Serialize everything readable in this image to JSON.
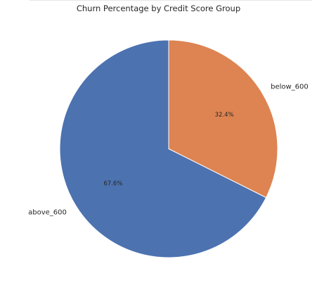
{
  "chart_data": {
    "type": "pie",
    "title": "Churn Percentage by Credit Score Group",
    "slices": [
      {
        "label": "below_600",
        "value": 32.4,
        "pct_label": "32.4%",
        "color": "#dd8452"
      },
      {
        "label": "above_600",
        "value": 67.6,
        "pct_label": "67.6%",
        "color": "#4c72b0"
      }
    ],
    "start_angle": "top (90°)",
    "direction": "clockwise",
    "edge_color": "#ffffff"
  }
}
